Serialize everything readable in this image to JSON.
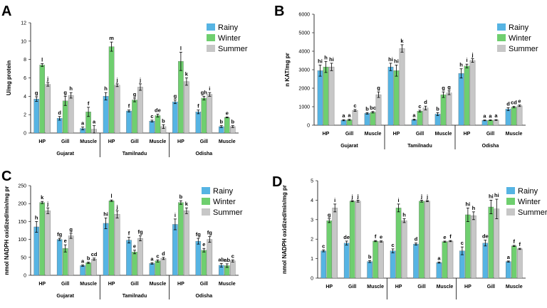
{
  "colors": {
    "Rainy": "#56b4e3",
    "Winter": "#6fcf6f",
    "Summer": "#c7c7c7",
    "axis": "#000000"
  },
  "chart_data": [
    {
      "panel": "A",
      "type": "bar",
      "ylabel": "U/mg protein",
      "ylim": [
        0,
        12
      ],
      "yticks": [
        0,
        2,
        4,
        6,
        8,
        10,
        12
      ],
      "series_names": [
        "Rainy",
        "Winter",
        "Summer"
      ],
      "groups": [
        {
          "name": "Gujarat",
          "tissues": [
            {
              "name": "HP",
              "values": [
                3.7,
                7.4,
                5.3
              ],
              "errors": [
                0.25,
                0.15,
                0.2
              ],
              "letters": [
                "g",
                "l",
                "j"
              ]
            },
            {
              "name": "Gill",
              "values": [
                1.6,
                3.5,
                4.1
              ],
              "errors": [
                0.2,
                0.5,
                0.3
              ],
              "letters": [
                "d",
                "g",
                "h"
              ]
            },
            {
              "name": "Muscle",
              "values": [
                0.5,
                2.3,
                0.4
              ],
              "errors": [
                0.15,
                0.5,
                0.4
              ],
              "letters": [
                "a",
                "f",
                "a"
              ]
            }
          ]
        },
        {
          "name": "Tamilnadu",
          "tissues": [
            {
              "name": "HP",
              "values": [
                4.0,
                9.4,
                5.2
              ],
              "errors": [
                0.4,
                0.5,
                0.15
              ],
              "letters": [
                "h",
                "m",
                "j"
              ]
            },
            {
              "name": "Gill",
              "values": [
                2.4,
                3.6,
                5.0
              ],
              "errors": [
                0.1,
                0.2,
                0.35
              ],
              "letters": [
                "f",
                "g",
                "j"
              ]
            },
            {
              "name": "Muscle",
              "values": [
                1.3,
                1.9,
                0.7
              ],
              "errors": [
                0.1,
                0.15,
                0.2
              ],
              "letters": [
                "c",
                "de",
                "b"
              ]
            }
          ]
        },
        {
          "name": "Odisha",
          "tissues": [
            {
              "name": "HP",
              "values": [
                3.4,
                7.8,
                5.6
              ],
              "errors": [
                0.2,
                1.0,
                0.4
              ],
              "letters": [
                "g",
                "l",
                "k"
              ]
            },
            {
              "name": "Gill",
              "values": [
                2.3,
                3.8,
                4.2
              ],
              "errors": [
                0.2,
                0.2,
                0.2
              ],
              "letters": [
                "f",
                "gh",
                "i"
              ]
            },
            {
              "name": "Muscle",
              "values": [
                0.7,
                1.7,
                0.7
              ],
              "errors": [
                0.1,
                0.05,
                0.1
              ],
              "letters": [
                "b",
                "e",
                "b"
              ]
            }
          ]
        }
      ]
    },
    {
      "panel": "B",
      "type": "bar",
      "ylabel": "n KAT/mg pr",
      "ylim": [
        0,
        6000
      ],
      "yticks": [
        0,
        1000,
        2000,
        3000,
        4000,
        5000,
        6000
      ],
      "series_names": [
        "Rainy",
        "Winter",
        "Summer"
      ],
      "groups": [
        {
          "name": "Gujarat",
          "tissues": [
            {
              "name": "HP",
              "values": [
                2950,
                3150,
                3150
              ],
              "errors": [
                300,
                300,
                200
              ],
              "letters": [
                "hi",
                "h",
                "hi"
              ]
            },
            {
              "name": "Gill",
              "values": [
                270,
                290,
                800
              ],
              "errors": [
                30,
                30,
                50
              ],
              "letters": [
                "a",
                "a",
                "c"
              ]
            },
            {
              "name": "Muscle",
              "values": [
                640,
                700,
                1650
              ],
              "errors": [
                40,
                40,
                150
              ],
              "letters": [
                "b",
                "bc",
                "g"
              ]
            }
          ]
        },
        {
          "name": "Tamilnadu",
          "tissues": [
            {
              "name": "HP",
              "values": [
                3150,
                2950,
                4150
              ],
              "errors": [
                200,
                300,
                200
              ],
              "letters": [
                "hi",
                "hi",
                "k"
              ]
            },
            {
              "name": "Gill",
              "values": [
                300,
                760,
                930
              ],
              "errors": [
                30,
                50,
                100
              ],
              "letters": [
                "a",
                "c",
                "d"
              ]
            },
            {
              "name": "Muscle",
              "values": [
                600,
                1650,
                1750
              ],
              "errors": [
                80,
                150,
                100
              ],
              "letters": [
                "b",
                "g",
                "g"
              ]
            }
          ]
        },
        {
          "name": "Odisha",
          "tissues": [
            {
              "name": "HP",
              "values": [
                2800,
                3200,
                3500
              ],
              "errors": [
                250,
                100,
                100
              ],
              "letters": [
                "h",
                "i",
                "j"
              ]
            },
            {
              "name": "Gill",
              "values": [
                260,
                270,
                280
              ],
              "errors": [
                20,
                20,
                20
              ],
              "letters": [
                "a",
                "a",
                "a"
              ]
            },
            {
              "name": "Muscle",
              "values": [
                870,
                980,
                1050
              ],
              "errors": [
                80,
                40,
                40
              ],
              "letters": [
                "d",
                "cd",
                "e"
              ]
            }
          ]
        }
      ]
    },
    {
      "panel": "C",
      "type": "bar",
      "ylabel": "nmol NADPH oxidized/min/mg pr",
      "ylim": [
        0,
        250
      ],
      "yticks": [
        0,
        50,
        100,
        150,
        200,
        250
      ],
      "series_names": [
        "Rainy",
        "Winter",
        "Summer"
      ],
      "groups": [
        {
          "name": "Gujarat",
          "tissues": [
            {
              "name": "HP",
              "values": [
                135,
                203,
                180
              ],
              "errors": [
                15,
                3,
                8
              ],
              "letters": [
                "h",
                "k",
                "j"
              ]
            },
            {
              "name": "Gill",
              "values": [
                100,
                75,
                110
              ],
              "errors": [
                3,
                10,
                7
              ],
              "letters": [
                "fg",
                "e",
                "g"
              ]
            },
            {
              "name": "Muscle",
              "values": [
                27,
                35,
                45
              ],
              "errors": [
                2,
                2,
                3
              ],
              "letters": [
                "a",
                "b",
                "cd"
              ]
            }
          ]
        },
        {
          "name": "Tamilnadu",
          "tissues": [
            {
              "name": "HP",
              "values": [
                145,
                208,
                170
              ],
              "errors": [
                15,
                2,
                10
              ],
              "letters": [
                "hi",
                "l",
                "j"
              ]
            },
            {
              "name": "Gill",
              "values": [
                98,
                65,
                103
              ],
              "errors": [
                8,
                5,
                7
              ],
              "letters": [
                "f",
                "e",
                "fg"
              ]
            },
            {
              "name": "Muscle",
              "values": [
                33,
                40,
                47
              ],
              "errors": [
                2,
                3,
                3
              ],
              "letters": [
                "a",
                "c",
                "d"
              ]
            }
          ]
        },
        {
          "name": "Odisha",
          "tissues": [
            {
              "name": "HP",
              "values": [
                142,
                203,
                180
              ],
              "errors": [
                15,
                5,
                8
              ],
              "letters": [
                "i",
                "b",
                "k"
              ]
            },
            {
              "name": "Gill",
              "values": [
                95,
                70,
                100
              ],
              "errors": [
                8,
                5,
                8
              ],
              "letters": [
                "fg",
                "e",
                "fg"
              ]
            },
            {
              "name": "Muscle",
              "values": [
                28,
                27,
                40
              ],
              "errors": [
                5,
                5,
                3
              ],
              "letters": [
                "ab",
                "ab",
                "c"
              ]
            }
          ]
        }
      ]
    },
    {
      "panel": "D",
      "type": "bar",
      "ylabel": "nmol NADPH oxidized/min/mg pr",
      "ylim": [
        0,
        5
      ],
      "yticks": [
        0,
        1,
        2,
        3,
        4,
        5
      ],
      "series_names": [
        "Rainy",
        "Winter",
        "Summer"
      ],
      "groups": [
        {
          "name": "",
          "tissues": [
            {
              "name": "HP",
              "values": [
                1.4,
                2.95,
                3.6
              ],
              "errors": [
                0.05,
                0.1,
                0.2
              ],
              "letters": [
                "c",
                "g",
                "i"
              ]
            },
            {
              "name": "Gill",
              "values": [
                1.8,
                3.95,
                3.95
              ],
              "errors": [
                0.1,
                0.03,
                0.05
              ],
              "letters": [
                "de",
                "j",
                "j"
              ]
            },
            {
              "name": "Muscle",
              "values": [
                0.85,
                1.9,
                1.88
              ],
              "errors": [
                0.05,
                0.03,
                0.03
              ],
              "letters": [
                "b",
                "f",
                "e"
              ]
            }
          ]
        },
        {
          "name": "",
          "tissues": [
            {
              "name": "HP",
              "values": [
                1.4,
                3.6,
                2.95
              ],
              "errors": [
                0.1,
                0.2,
                0.1
              ],
              "letters": [
                "c",
                "i",
                "h"
              ]
            },
            {
              "name": "Gill",
              "values": [
                1.75,
                3.95,
                3.95
              ],
              "errors": [
                0.05,
                0.05,
                0.03
              ],
              "letters": [
                "d",
                "j",
                "j"
              ]
            },
            {
              "name": "Muscle",
              "values": [
                0.8,
                1.87,
                1.9
              ],
              "errors": [
                0.03,
                0.03,
                0.03
              ],
              "letters": [
                "a",
                "e",
                "f"
              ]
            }
          ]
        },
        {
          "name": "",
          "tissues": [
            {
              "name": "HP",
              "values": [
                1.4,
                3.25,
                3.2
              ],
              "errors": [
                0.2,
                0.35,
                0.2
              ],
              "letters": [
                "c",
                "hi",
                "h"
              ]
            },
            {
              "name": "Gill",
              "values": [
                1.8,
                3.65,
                3.55
              ],
              "errors": [
                0.15,
                0.35,
                0.5
              ],
              "letters": [
                "de",
                "hi",
                "hi"
              ]
            },
            {
              "name": "Muscle",
              "values": [
                0.85,
                1.65,
                1.5
              ],
              "errors": [
                0.03,
                0.03,
                0.03
              ],
              "letters": [
                "a",
                "f",
                "f"
              ]
            }
          ]
        }
      ]
    }
  ]
}
